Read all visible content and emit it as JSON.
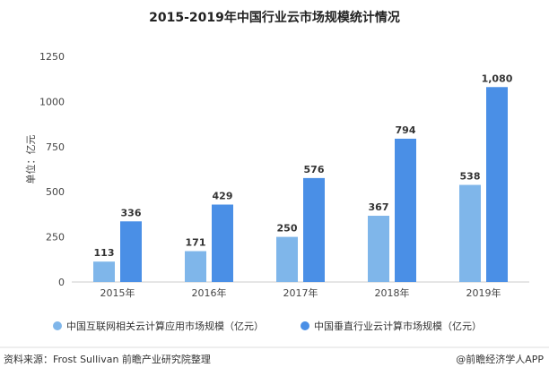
{
  "chart_data": {
    "type": "bar",
    "title": "2015-2019年中国行业云市场规模统计情况",
    "ylabel": "单位：亿元",
    "categories": [
      "2015年",
      "2016年",
      "2017年",
      "2018年",
      "2019年"
    ],
    "ylim": [
      0,
      1250
    ],
    "yticks": [
      0,
      250,
      500,
      750,
      1000,
      1250
    ],
    "grid": false,
    "legend_position": "bottom",
    "series": [
      {
        "name": "中国互联网相关云计算应用市场规模（亿元）",
        "values": [
          113,
          171,
          250,
          367,
          538
        ],
        "labels": [
          "113",
          "171",
          "250",
          "367",
          "538"
        ],
        "color": "#7fb6ea"
      },
      {
        "name": "中国垂直行业云计算市场规模（亿元）",
        "values": [
          336,
          429,
          576,
          794,
          1080
        ],
        "labels": [
          "336",
          "429",
          "576",
          "794",
          "1,080"
        ],
        "color": "#4a8fe6"
      }
    ]
  },
  "footer": {
    "source": "资料来源：Frost Sullivan 前瞻产业研究院整理",
    "brand": "@前瞻经济学人APP"
  }
}
